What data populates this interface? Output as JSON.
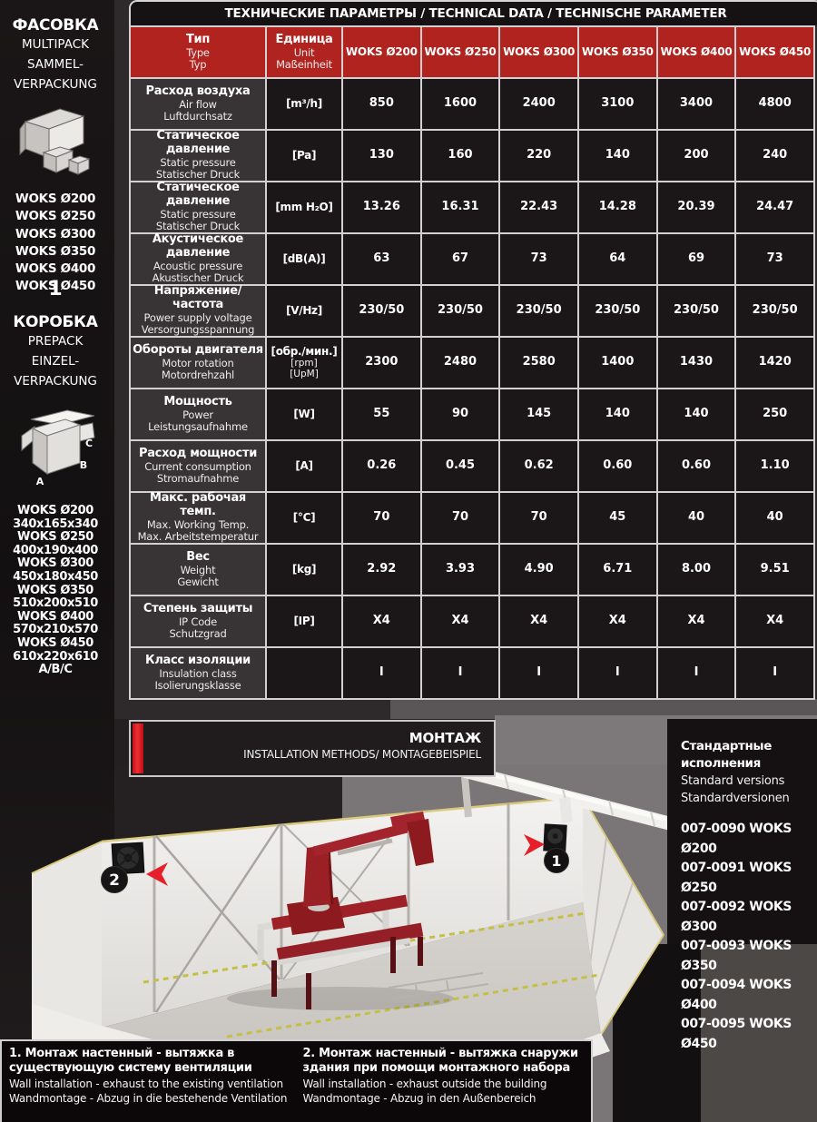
{
  "page": {
    "title_bar": "ТЕХНИЧЕСКИЕ ПАРАМЕТРЫ / TECHNICAL DATA / TECHNISCHE PARAMETER"
  },
  "colors": {
    "header_red": "#b0231e",
    "accent_red": "#e5202a",
    "cell_dark": "#1b1718",
    "cell_label": "#383334"
  },
  "sidebar": {
    "multipack": {
      "title": "ФАСОВКА",
      "sub1": "MULTIPACK",
      "sub2": "SAMMEL-",
      "sub3": "VERPACKUNG"
    },
    "models": [
      "WOKS Ø200",
      "WOKS Ø250",
      "WOKS Ø300",
      "WOKS Ø350",
      "WOKS Ø400",
      "WOKS Ø450"
    ],
    "multipack_qty": "1",
    "prepack": {
      "title": "КОРОБКА",
      "sub1": "PREPACK",
      "sub2": "EINZEL-",
      "sub3": "VERPACKUNG"
    },
    "box_labels": {
      "a": "A",
      "b": "B",
      "c": "C"
    },
    "package_dimensions": [
      "WOKS Ø200",
      "340x165x340",
      "WOKS Ø250",
      "400x190x400",
      "WOKS Ø300",
      "450x180x450",
      "WOKS Ø350",
      "510x200x510",
      "WOKS Ø400",
      "570x210x570",
      "WOKS Ø450",
      "610x220x610",
      "A/B/C"
    ]
  },
  "table": {
    "type_header": [
      "Тип",
      "Type",
      "Typ"
    ],
    "unit_header": [
      "Единица",
      "Unit",
      "Maßeinheit"
    ],
    "models": [
      "WOKS Ø200",
      "WOKS Ø250",
      "WOKS Ø300",
      "WOKS Ø350",
      "WOKS Ø400",
      "WOKS Ø450"
    ],
    "rows": [
      {
        "label": [
          "Расход воздуха",
          "Air flow",
          "Luftdurchsatz"
        ],
        "unit": [
          "[m³/h]"
        ],
        "values": [
          "850",
          "1600",
          "2400",
          "3100",
          "3400",
          "4800"
        ]
      },
      {
        "label": [
          "Статическое давление",
          "Static pressure",
          "Statischer Druck"
        ],
        "unit": [
          "[Pa]"
        ],
        "values": [
          "130",
          "160",
          "220",
          "140",
          "200",
          "240"
        ]
      },
      {
        "label": [
          "Статическое давление",
          "Static pressure",
          "Statischer Druck"
        ],
        "unit": [
          "[mm H₂O]"
        ],
        "values": [
          "13.26",
          "16.31",
          "22.43",
          "14.28",
          "20.39",
          "24.47"
        ]
      },
      {
        "label": [
          "Акустическое давление",
          "Acoustic pressure",
          "Akustischer Druck"
        ],
        "unit": [
          "[dB(A)]"
        ],
        "values": [
          "63",
          "67",
          "73",
          "64",
          "69",
          "73"
        ]
      },
      {
        "label": [
          "Напряжение/частота",
          "Power supply voltage",
          "Versorgungsspannung"
        ],
        "unit": [
          "[V/Hz]"
        ],
        "values": [
          "230/50",
          "230/50",
          "230/50",
          "230/50",
          "230/50",
          "230/50"
        ]
      },
      {
        "label": [
          "Обороты двигателя",
          "Motor rotation",
          "Motordrehzahl"
        ],
        "unit": [
          "[обр./мин.]",
          "[rpm]",
          "[UpM]"
        ],
        "values": [
          "2300",
          "2480",
          "2580",
          "1400",
          "1430",
          "1420"
        ]
      },
      {
        "label": [
          "Мощность",
          "Power",
          "Leistungsaufnahme"
        ],
        "unit": [
          "[W]"
        ],
        "values": [
          "55",
          "90",
          "145",
          "140",
          "140",
          "250"
        ]
      },
      {
        "label": [
          "Расход мощности",
          "Current consumption",
          "Stromaufnahme"
        ],
        "unit": [
          "[A]"
        ],
        "values": [
          "0.26",
          "0.45",
          "0.62",
          "0.60",
          "0.60",
          "1.10"
        ]
      },
      {
        "label": [
          "Макс. рабочая темп.",
          "Max. Working Temp.",
          "Max. Arbeitstemperatur"
        ],
        "unit": [
          "[°C]"
        ],
        "values": [
          "70",
          "70",
          "70",
          "45",
          "40",
          "40"
        ]
      },
      {
        "label": [
          "Вес",
          "Weight",
          "Gewicht"
        ],
        "unit": [
          "[kg]"
        ],
        "values": [
          "2.92",
          "3.93",
          "4.90",
          "6.71",
          "8.00",
          "9.51"
        ]
      },
      {
        "label": [
          "Степень защиты",
          "IP Code",
          "Schutzgrad"
        ],
        "unit": [
          "[IP]"
        ],
        "values": [
          "X4",
          "X4",
          "X4",
          "X4",
          "X4",
          "X4"
        ]
      },
      {
        "label": [
          "Класс изоляции",
          "Insulation class",
          "Isolierungsklasse"
        ],
        "unit": [],
        "values": [
          "I",
          "I",
          "I",
          "I",
          "I",
          "I"
        ]
      }
    ]
  },
  "montage": {
    "title": "МОНТАЖ",
    "subtitle": "INSTALLATION METHODS/ MONTAGEBEISPIEL"
  },
  "standard_versions": {
    "title_ru": "Стандартные исполнения",
    "title_en": "Standard versions",
    "title_de": "Standardversionen",
    "items": [
      "007-0090 WOKS Ø200",
      "007-0091 WOKS Ø250",
      "007-0092 WOKS Ø300",
      "007-0093 WOKS Ø350",
      "007-0094 WOKS Ø400",
      "007-0095 WOKS Ø450"
    ]
  },
  "illustration": {
    "badge_1": "1",
    "badge_2": "2"
  },
  "notes": [
    {
      "ru": "1. Монтаж настенный - вытяжка в существующую систему вентиляции",
      "en": "Wall installation - exhaust to the existing ventilation",
      "de": "Wandmontage - Abzug in die bestehende Ventilation"
    },
    {
      "ru": "2. Монтаж настенный - вытяжка снаружи здания при помощи монтажного набора",
      "en": "Wall installation - exhaust outside the building",
      "de": "Wandmontage - Abzug in den Außenbereich"
    }
  ]
}
